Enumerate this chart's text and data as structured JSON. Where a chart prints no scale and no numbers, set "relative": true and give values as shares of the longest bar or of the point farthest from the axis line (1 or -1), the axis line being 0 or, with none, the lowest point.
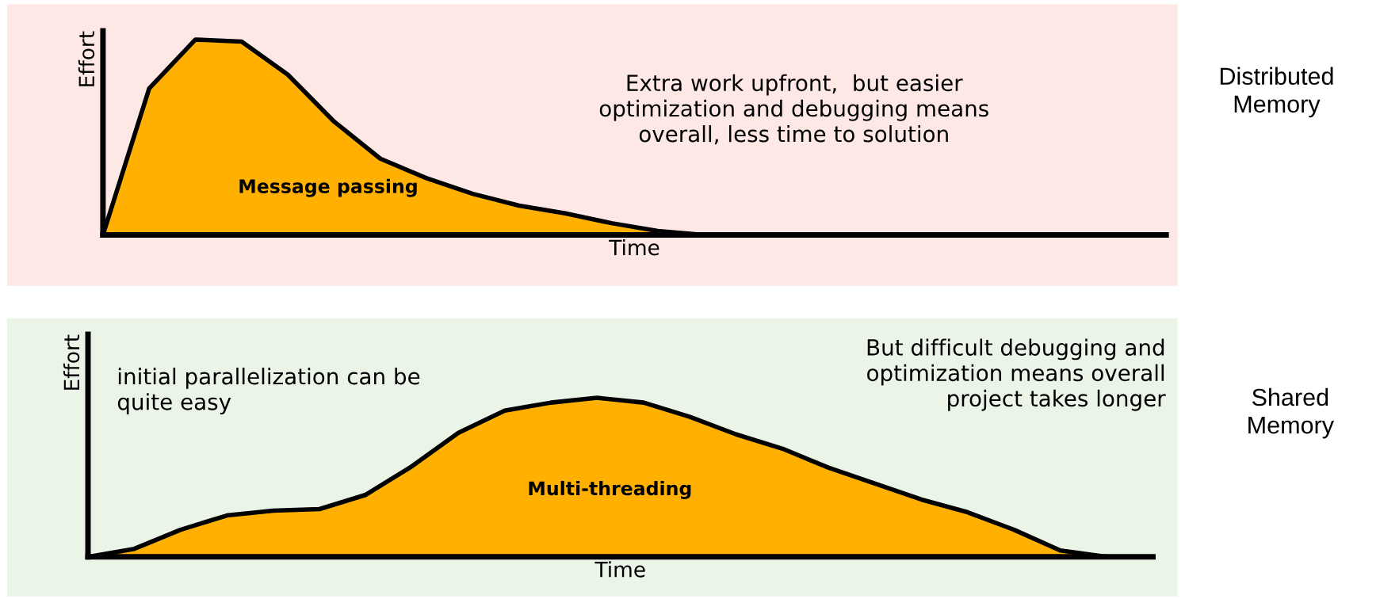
{
  "chart_data": [
    {
      "type": "area",
      "relative": true,
      "xlabel": "Time",
      "ylabel": "Effort",
      "categories": [
        null,
        null,
        null,
        null,
        null,
        null,
        null,
        null,
        null,
        null,
        null,
        null,
        null,
        null,
        null,
        null,
        null,
        null,
        null,
        null,
        null,
        null,
        null,
        null
      ],
      "series": [
        {
          "name": "Message passing",
          "color": "#ffb000",
          "values": [
            0,
            0.75,
            1.0,
            0.99,
            0.82,
            0.58,
            0.39,
            0.29,
            0.21,
            0.15,
            0.11,
            0.06,
            0.02,
            0,
            0,
            0,
            0,
            0,
            0,
            0,
            0,
            0,
            0,
            0
          ]
        }
      ],
      "annotations": [
        "Extra work upfront,  but easier\noptimization and debugging means\noverall, less time to solution",
        "Distributed\nMemory"
      ]
    },
    {
      "type": "area",
      "relative": true,
      "xlabel": "Time",
      "ylabel": "Effort",
      "categories": [
        null,
        null,
        null,
        null,
        null,
        null,
        null,
        null,
        null,
        null,
        null,
        null,
        null,
        null,
        null,
        null,
        null,
        null,
        null,
        null,
        null,
        null,
        null,
        null
      ],
      "series": [
        {
          "name": "Multi-threading",
          "color": "#ffb000",
          "values": [
            0,
            0.05,
            0.17,
            0.26,
            0.29,
            0.3,
            0.39,
            0.57,
            0.78,
            0.92,
            0.97,
            1.0,
            0.97,
            0.88,
            0.77,
            0.68,
            0.56,
            0.46,
            0.36,
            0.28,
            0.17,
            0.04,
            0,
            0
          ]
        }
      ],
      "annotations": [
        "initial parallelization can be\nquite easy",
        "But difficult debugging and\noptimization means overall\nproject takes longer",
        "Shared\nMemory"
      ]
    }
  ]
}
